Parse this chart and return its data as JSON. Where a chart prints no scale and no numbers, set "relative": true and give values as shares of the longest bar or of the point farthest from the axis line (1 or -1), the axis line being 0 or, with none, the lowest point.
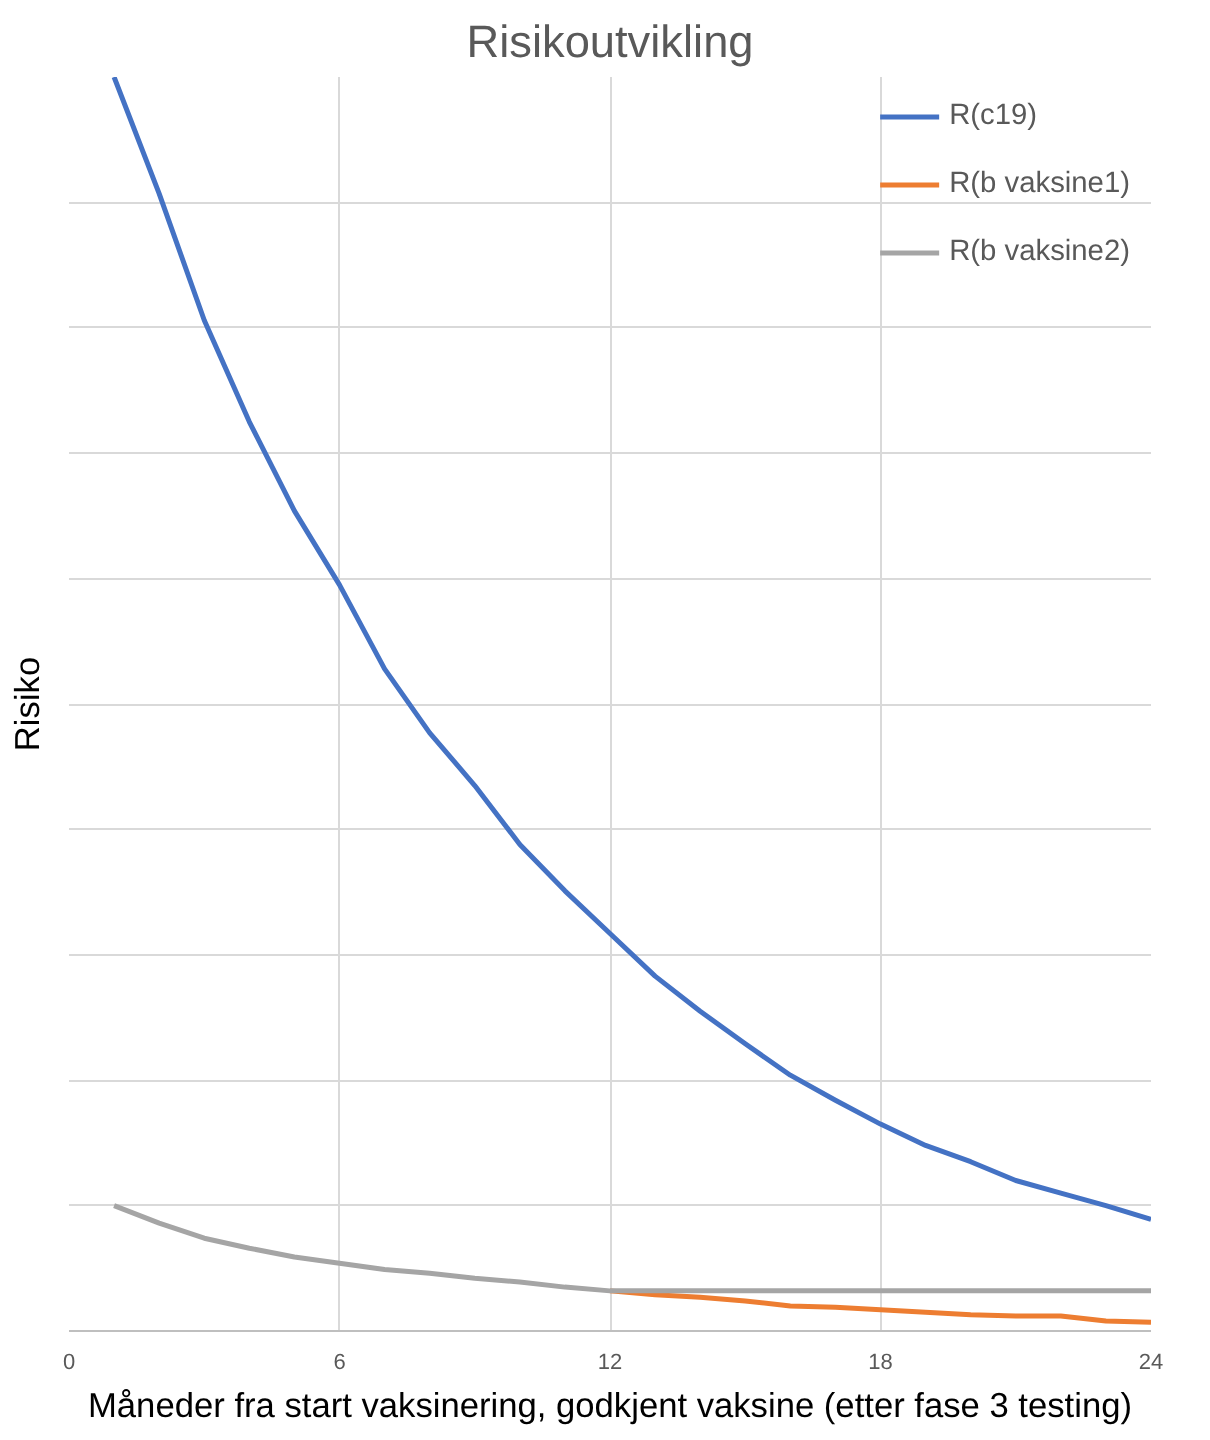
{
  "chart_data": {
    "type": "line",
    "title": "Risikoutvikling",
    "xlabel": "Måneder fra start vaksinering, godkjent vaksine (etter fase 3 testing)",
    "ylabel": "Risiko",
    "relative": true,
    "xlim": [
      0,
      24
    ],
    "xticks": [
      0,
      6,
      12,
      18,
      24
    ],
    "grid": true,
    "legend": "top right",
    "marker": "none",
    "line_style": "solid",
    "x": [
      1,
      2,
      3,
      4,
      5,
      6,
      7,
      8,
      9,
      10,
      11,
      12,
      13,
      14,
      15,
      16,
      17,
      18,
      19,
      20,
      21,
      22,
      23,
      24
    ],
    "series": [
      {
        "name": "R(c19)",
        "color": "#4472c4",
        "values": [
          1.0,
          0.907,
          0.806,
          0.725,
          0.654,
          0.595,
          0.528,
          0.477,
          0.435,
          0.388,
          0.351,
          0.317,
          0.283,
          0.255,
          0.229,
          0.204,
          0.184,
          0.165,
          0.148,
          0.135,
          0.12,
          0.11,
          0.1,
          0.089
        ]
      },
      {
        "name": "R(b vaksine1)",
        "color": "#ed7d31",
        "values": [
          null,
          null,
          null,
          null,
          null,
          null,
          null,
          null,
          null,
          null,
          null,
          0.032,
          0.029,
          0.027,
          0.024,
          0.02,
          0.019,
          0.017,
          0.015,
          0.013,
          0.012,
          0.012,
          0.008,
          0.007
        ]
      },
      {
        "name": "R(b vaksine2)",
        "color": "#a5a5a5",
        "values": [
          0.1,
          0.086,
          0.074,
          0.066,
          0.059,
          0.054,
          0.049,
          0.046,
          0.042,
          0.039,
          0.035,
          0.032,
          0.032,
          0.032,
          0.032,
          0.032,
          0.032,
          0.032,
          0.032,
          0.032,
          0.032,
          0.032,
          0.032,
          0.032
        ]
      }
    ]
  }
}
